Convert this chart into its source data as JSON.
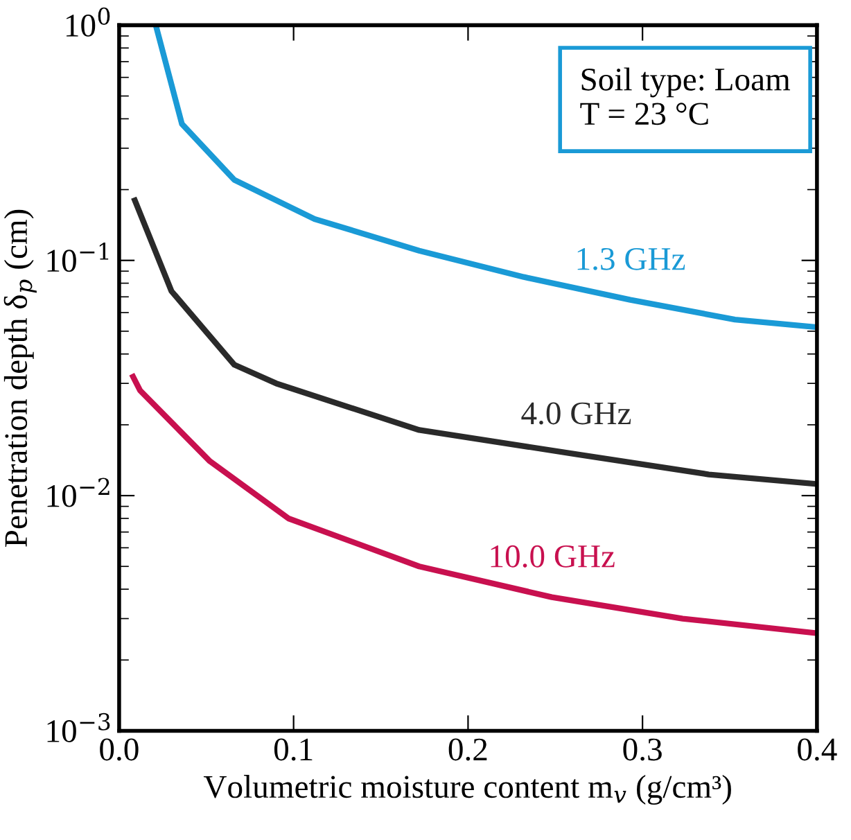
{
  "chart_data": {
    "type": "line",
    "xlabel": "Volumetric moisture content m$_{v}$ (g/cm³)",
    "ylabel": "Penetration depth δ$_{p}$ (cm)",
    "log": "y",
    "xlim": [
      0,
      0.4
    ],
    "ylim": [
      0.001,
      1
    ],
    "xticks": [
      {
        "value": 0,
        "label": "0.0"
      },
      0.1,
      0.2,
      0.3,
      0.4
    ],
    "yticks": [
      {
        "value": 0.001,
        "label": "10$^{−3}$"
      },
      {
        "value": 0.01,
        "label": "10$^{−2}$"
      },
      {
        "value": 0.1,
        "label": "10$^{−1}$"
      },
      {
        "value": 1,
        "label": "10$^{0}$"
      }
    ],
    "grid": false,
    "legend": false,
    "marker": "none",
    "line_style": "solid",
    "series": [
      {
        "name": "1.3 GHz",
        "color": "#1a9ad6",
        "x": [
          0.021,
          0.036,
          0.066,
          0.112,
          0.172,
          0.232,
          0.293,
          0.353,
          0.4
        ],
        "values": [
          1.0,
          0.38,
          0.22,
          0.15,
          0.11,
          0.085,
          0.068,
          0.056,
          0.052
        ]
      },
      {
        "name": "4.0 GHz",
        "color": "#2a2a2a",
        "x": [
          0.009,
          0.03,
          0.066,
          0.09,
          0.172,
          0.262,
          0.338,
          0.4
        ],
        "values": [
          0.18,
          0.074,
          0.036,
          0.03,
          0.019,
          0.015,
          0.0123,
          0.0112
        ]
      },
      {
        "name": "10.0 GHz",
        "color": "#c8104f",
        "x": [
          0.008,
          0.012,
          0.052,
          0.097,
          0.172,
          0.248,
          0.323,
          0.4
        ],
        "values": [
          0.032,
          0.028,
          0.014,
          0.008,
          0.005,
          0.0037,
          0.003,
          0.0026
        ]
      }
    ],
    "annotations": [
      "Soil type: Loam\nT = 23 °C"
    ]
  }
}
